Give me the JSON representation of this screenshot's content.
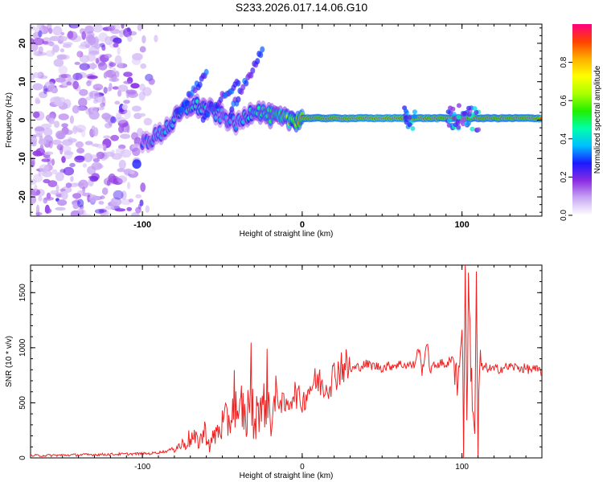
{
  "title": "S233.2026.017.14.06.G10",
  "chart_data": [
    {
      "type": "heatmap",
      "xlabel": "Height of straight line (km)",
      "ylabel": "Frequency (Hz)",
      "xlim": [
        -170,
        150
      ],
      "ylim": [
        -25,
        25
      ],
      "xticks": [
        -100,
        0,
        100
      ],
      "yticks": [
        -20,
        -10,
        0,
        10,
        20
      ],
      "colorbar": {
        "label": "Normalized spectral amplitude",
        "range": [
          0,
          1
        ],
        "ticks": [
          0.0,
          0.2,
          0.4,
          0.6,
          0.8
        ],
        "colors": [
          "#ffffff",
          "#c8a8f4",
          "#8a2be2",
          "#1a1aff",
          "#00c0ff",
          "#00ffaa",
          "#22ee00",
          "#aaff00",
          "#ffff00",
          "#ffb000",
          "#ff4000",
          "#ff0080"
        ]
      },
      "ridge": {
        "description_points_x": [
          -100,
          -90,
          -80,
          -70,
          -60,
          -50,
          -40,
          -30,
          -20,
          -10,
          0,
          50,
          100,
          150
        ],
        "frequency_hz": [
          -6,
          -4,
          0,
          4,
          3,
          1,
          -1,
          3,
          1,
          0,
          0.5,
          0.5,
          0.5,
          0.5
        ],
        "amplitude": [
          0.3,
          0.35,
          0.4,
          0.45,
          0.4,
          0.35,
          0.35,
          0.45,
          0.5,
          0.6,
          0.9,
          0.95,
          0.9,
          0.92
        ]
      },
      "noise_region_x": [
        -170,
        -90
      ]
    },
    {
      "type": "line",
      "xlabel": "Height of straight line (km)",
      "ylabel": "SNR (10 * v/v)",
      "xlim": [
        -170,
        150
      ],
      "ylim": [
        0,
        1750
      ],
      "xticks": [
        -100,
        0,
        100
      ],
      "yticks": [
        0,
        500,
        1000,
        1500
      ],
      "color": "#ee2222",
      "series": [
        {
          "name": "SNR",
          "x": [
            -170,
            -150,
            -130,
            -110,
            -95,
            -85,
            -75,
            -70,
            -65,
            -60,
            -58,
            -55,
            -50,
            -45,
            -42,
            -40,
            -38,
            -35,
            -32,
            -30,
            -28,
            -25,
            -22,
            -20,
            -15,
            -10,
            -5,
            0,
            5,
            10,
            15,
            20,
            25,
            30,
            40,
            50,
            60,
            70,
            73,
            75,
            78,
            80,
            85,
            90,
            95,
            98,
            100,
            101,
            102,
            103,
            104,
            106,
            108,
            109,
            110,
            111,
            115,
            120,
            130,
            140,
            150
          ],
          "y": [
            20,
            25,
            30,
            35,
            40,
            60,
            120,
            180,
            150,
            250,
            100,
            200,
            300,
            350,
            600,
            250,
            500,
            300,
            700,
            200,
            550,
            400,
            650,
            350,
            550,
            450,
            600,
            500,
            650,
            700,
            650,
            750,
            850,
            800,
            850,
            820,
            850,
            840,
            1000,
            780,
            1050,
            800,
            860,
            850,
            900,
            700,
            1300,
            150,
            1750,
            450,
            1500,
            700,
            250,
            1500,
            120,
            820,
            820,
            800,
            830,
            810,
            790
          ]
        }
      ]
    }
  ]
}
